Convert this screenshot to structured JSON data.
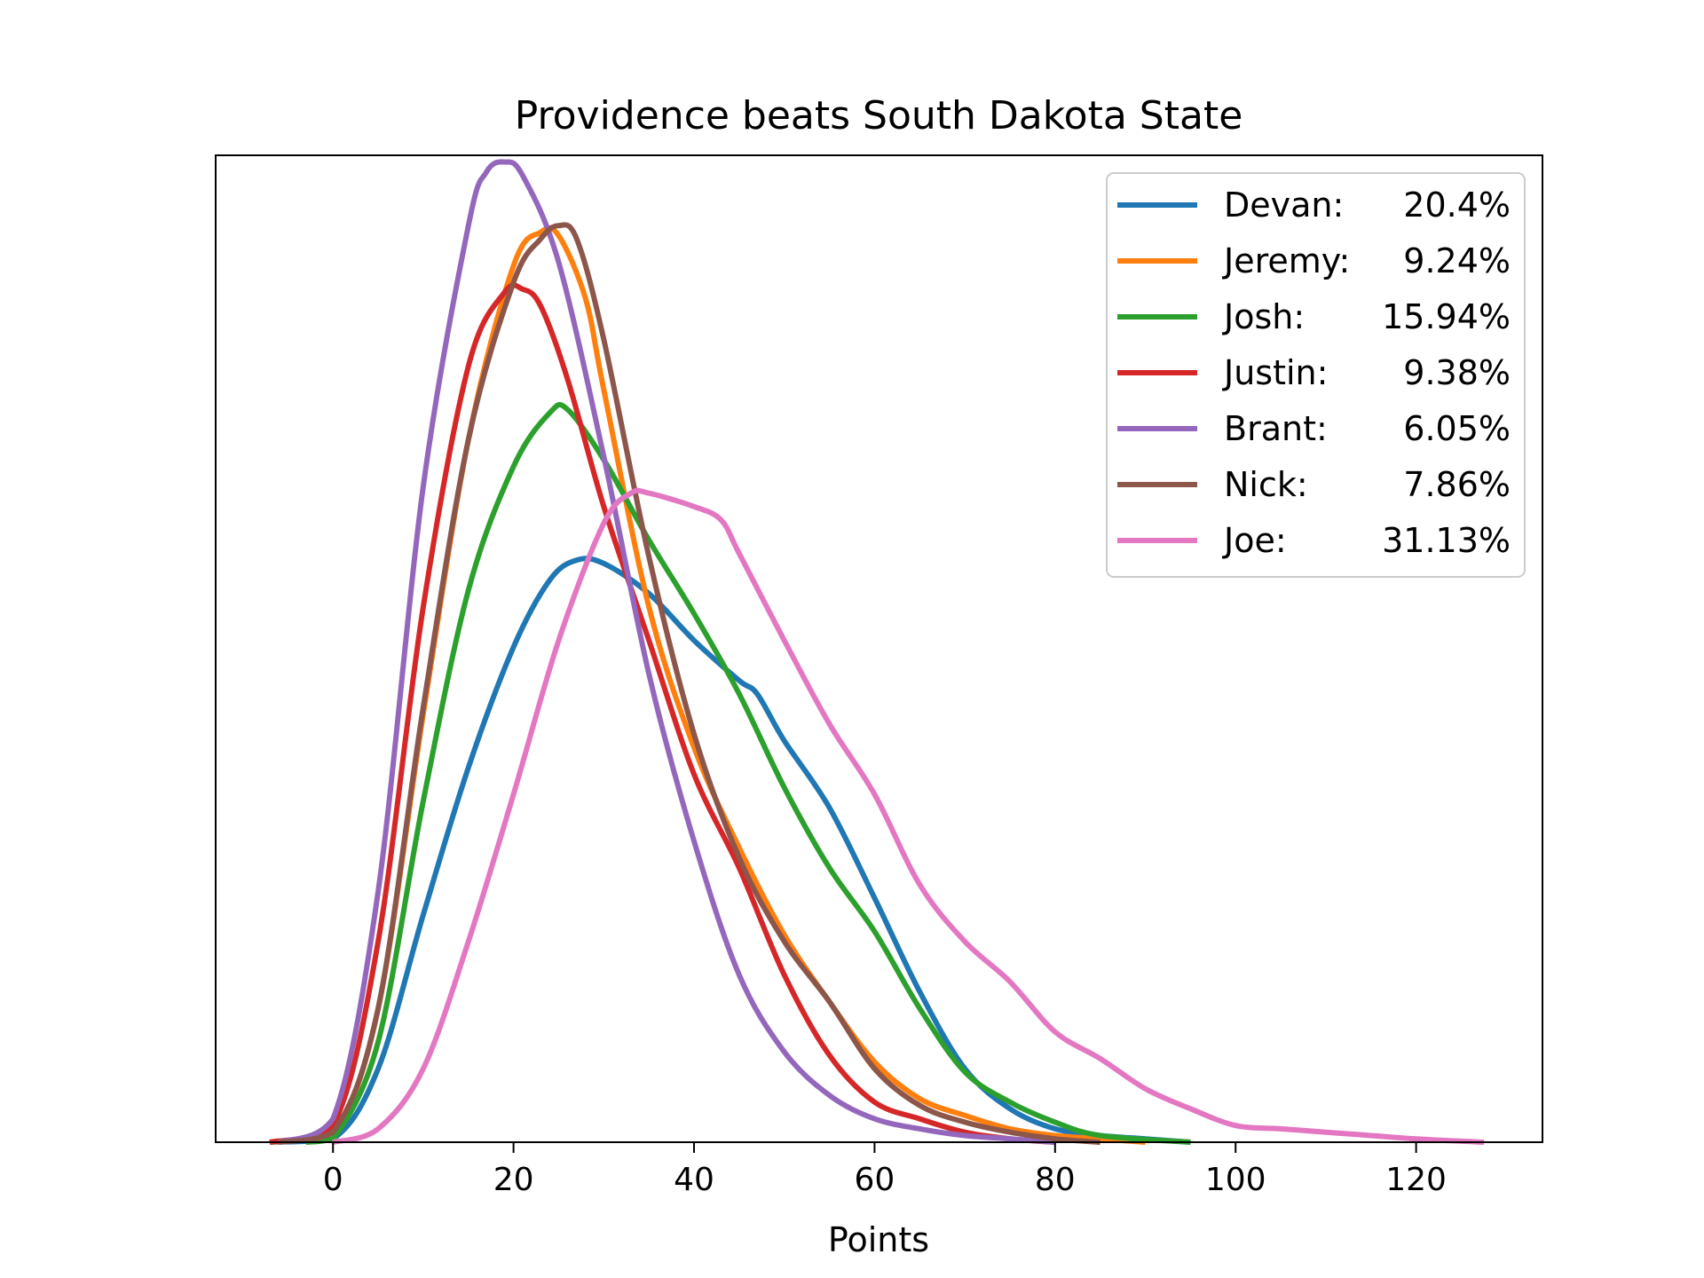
{
  "chart_data": {
    "type": "line",
    "title": "Providence beats South Dakota State",
    "xlabel": "Points",
    "ylabel": "",
    "xlim": [
      -13,
      134
    ],
    "ylim": [
      0,
      0.0295
    ],
    "xticks": [
      0,
      20,
      40,
      60,
      80,
      100,
      120
    ],
    "x_tick_labels": [
      "0",
      "20",
      "40",
      "60",
      "80",
      "100",
      "120"
    ],
    "yticks_visible": false,
    "grid": false,
    "legend": {
      "position": "top-right"
    },
    "series": [
      {
        "name": "Devan:",
        "pct": "20.4%",
        "color": "#1f77b4",
        "x": [
          -7,
          0,
          5,
          10,
          15,
          20,
          24,
          27,
          30,
          35,
          40,
          45,
          47,
          50,
          55,
          60,
          65,
          70,
          75,
          80,
          85,
          90,
          95
        ],
        "y": [
          0,
          0.0001,
          0.0022,
          0.0068,
          0.0112,
          0.0148,
          0.0168,
          0.0174,
          0.0173,
          0.0164,
          0.015,
          0.0138,
          0.0134,
          0.012,
          0.01,
          0.0073,
          0.0045,
          0.0022,
          0.001,
          0.0004,
          0.0002,
          0.0001,
          0
        ]
      },
      {
        "name": "Jeremy:",
        "pct": "9.24%",
        "color": "#ff7f0e",
        "x": [
          -7,
          0,
          5,
          10,
          15,
          20,
          23,
          25,
          28,
          30,
          35,
          40,
          45,
          50,
          55,
          60,
          65,
          70,
          75,
          80,
          85,
          90
        ],
        "y": [
          0,
          0.0003,
          0.004,
          0.0128,
          0.021,
          0.0262,
          0.0272,
          0.0271,
          0.0252,
          0.0225,
          0.016,
          0.0118,
          0.0088,
          0.0062,
          0.0042,
          0.0024,
          0.0013,
          0.0008,
          0.0004,
          0.0002,
          0.0001,
          0
        ]
      },
      {
        "name": "Josh:",
        "pct": "15.94%",
        "color": "#2ca02c",
        "x": [
          -3,
          0,
          5,
          10,
          15,
          20,
          24,
          26,
          30,
          35,
          40,
          45,
          50,
          55,
          60,
          65,
          70,
          75,
          80,
          85,
          95
        ],
        "y": [
          0,
          0.0001,
          0.003,
          0.0102,
          0.0165,
          0.0202,
          0.0218,
          0.0219,
          0.0204,
          0.018,
          0.0158,
          0.0134,
          0.0106,
          0.0082,
          0.0063,
          0.004,
          0.0021,
          0.0012,
          0.0006,
          0.0002,
          0
        ]
      },
      {
        "name": "Justin:",
        "pct": "9.38%",
        "color": "#d62728",
        "x": [
          -7,
          0,
          5,
          10,
          15,
          19,
          21,
          23,
          26,
          30,
          35,
          40,
          45,
          50,
          55,
          60,
          65,
          70,
          75,
          80
        ],
        "y": [
          0,
          0.0005,
          0.006,
          0.016,
          0.0232,
          0.0254,
          0.0255,
          0.025,
          0.0228,
          0.019,
          0.015,
          0.011,
          0.0082,
          0.005,
          0.0026,
          0.0012,
          0.0007,
          0.0003,
          0.0001,
          0
        ]
      },
      {
        "name": "Brant:",
        "pct": "6.05%",
        "color": "#9467bd",
        "x": [
          -6,
          0,
          5,
          10,
          15,
          17,
          19,
          21,
          25,
          30,
          35,
          40,
          45,
          50,
          55,
          60,
          65,
          70,
          75,
          80
        ],
        "y": [
          0,
          0.0007,
          0.0075,
          0.0196,
          0.0274,
          0.029,
          0.0293,
          0.0289,
          0.0263,
          0.0205,
          0.014,
          0.009,
          0.005,
          0.0027,
          0.0014,
          0.0007,
          0.0004,
          0.0002,
          0.0001,
          0
        ]
      },
      {
        "name": "Nick:",
        "pct": "7.86%",
        "color": "#8c564b",
        "x": [
          -6,
          0,
          5,
          10,
          15,
          20,
          23,
          25,
          27,
          30,
          35,
          40,
          45,
          50,
          55,
          60,
          65,
          70,
          75,
          80,
          85
        ],
        "y": [
          0,
          0.0003,
          0.004,
          0.013,
          0.021,
          0.0257,
          0.027,
          0.0274,
          0.027,
          0.024,
          0.0175,
          0.0122,
          0.0085,
          0.006,
          0.0042,
          0.0022,
          0.0011,
          0.0006,
          0.0003,
          0.0001,
          0
        ]
      },
      {
        "name": "Joe:",
        "pct": "31.13%",
        "color": "#e377c2",
        "x": [
          0,
          5,
          10,
          15,
          20,
          25,
          30,
          33,
          35,
          40,
          43,
          45,
          50,
          55,
          60,
          65,
          70,
          75,
          80,
          85,
          90,
          95,
          100,
          105,
          110,
          115,
          120,
          127.5
        ],
        "y": [
          0,
          0.0004,
          0.0022,
          0.006,
          0.0104,
          0.015,
          0.0185,
          0.0194,
          0.0194,
          0.019,
          0.0186,
          0.0176,
          0.015,
          0.0125,
          0.0104,
          0.0077,
          0.006,
          0.0048,
          0.0033,
          0.0025,
          0.0016,
          0.001,
          0.0005,
          0.0004,
          0.0003,
          0.0002,
          0.0001,
          0
        ]
      }
    ]
  }
}
